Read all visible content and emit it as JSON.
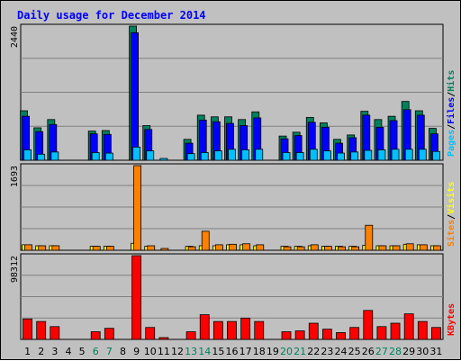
{
  "chart_data": {
    "type": "bar",
    "title": "Daily usage for December 2014",
    "categories": [
      "1",
      "2",
      "3",
      "4",
      "5",
      "6",
      "7",
      "8",
      "9",
      "10",
      "11",
      "12",
      "13",
      "14",
      "15",
      "16",
      "17",
      "18",
      "19",
      "20",
      "21",
      "22",
      "23",
      "24",
      "25",
      "26",
      "27",
      "28",
      "29",
      "30",
      "31"
    ],
    "weekend_days": [
      "6",
      "7",
      "13",
      "14",
      "20",
      "21",
      "27",
      "28"
    ],
    "panels": [
      {
        "id": "hits-files-pages",
        "axis_max_label": "2440",
        "ymax": 2440,
        "series": [
          {
            "name": "Hits",
            "color": "#00805c",
            "values": [
              900,
              590,
              740,
              0,
              0,
              530,
              540,
              0,
              2440,
              630,
              0,
              0,
              380,
              820,
              790,
              790,
              740,
              880,
              0,
              440,
              510,
              780,
              680,
              380,
              460,
              890,
              740,
              800,
              1070,
              900,
              580
            ]
          },
          {
            "name": "Files",
            "color": "#0000ff",
            "values": [
              800,
              520,
              650,
              0,
              0,
              480,
              470,
              0,
              2320,
              560,
              0,
              0,
              310,
              730,
              700,
              670,
              630,
              770,
              0,
              390,
              450,
              690,
              600,
              310,
              410,
              820,
              600,
              720,
              920,
              820,
              480
            ]
          },
          {
            "name": "Pages",
            "color": "#00c0ff",
            "values": [
              190,
              110,
              150,
              0,
              0,
              140,
              130,
              0,
              240,
              170,
              15,
              0,
              120,
              140,
              170,
              200,
              190,
              200,
              0,
              140,
              140,
              200,
              170,
              130,
              150,
              180,
              190,
              200,
              200,
              200,
              160
            ]
          }
        ],
        "right_label": [
          "Pages",
          "Files",
          "Hits"
        ],
        "right_label_colors": [
          "#00c0ff",
          "#0000ff",
          "#00805c"
        ]
      },
      {
        "id": "sites-visits",
        "axis_max_label": "1693",
        "ymax": 1693,
        "series": [
          {
            "name": "Visits",
            "color": "#ffff00",
            "values": [
              110,
              90,
              90,
              0,
              0,
              80,
              80,
              0,
              140,
              80,
              0,
              0,
              80,
              90,
              90,
              110,
              110,
              90,
              0,
              80,
              80,
              90,
              80,
              80,
              80,
              100,
              90,
              90,
              120,
              110,
              90
            ]
          },
          {
            "name": "Sites",
            "color": "#ff8000",
            "values": [
              110,
              90,
              90,
              0,
              0,
              80,
              80,
              0,
              1693,
              90,
              15,
              0,
              70,
              380,
              110,
              120,
              130,
              110,
              0,
              70,
              70,
              110,
              80,
              70,
              70,
              500,
              90,
              90,
              130,
              110,
              90
            ]
          }
        ],
        "right_label": [
          "Sites",
          "Visits"
        ],
        "right_label_colors": [
          "#ff8000",
          "#ffff00"
        ]
      },
      {
        "id": "kbytes",
        "axis_max_label": "98312",
        "ymax": 98312,
        "series": [
          {
            "name": "KBytes",
            "color": "#ff0000",
            "values": [
              24000,
              21000,
              15000,
              0,
              0,
              9000,
              13000,
              0,
              98312,
              14000,
              1500,
              0,
              9000,
              29000,
              21000,
              21000,
              25000,
              21000,
              0,
              9000,
              10000,
              19000,
              12000,
              8000,
              14000,
              34000,
              15000,
              19000,
              30000,
              21000,
              14000
            ]
          }
        ],
        "right_label": [
          "KBytes"
        ],
        "right_label_colors": [
          "#ff0000"
        ]
      }
    ]
  }
}
